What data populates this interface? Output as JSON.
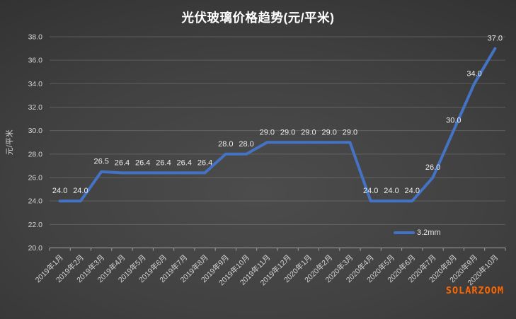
{
  "title": "光伏玻璃价格趋势(元/平米)",
  "watermark": "SOLARZOOM",
  "legend": {
    "label": "3.2mm",
    "color": "#4472C4"
  },
  "colors": {
    "line": "#4472C4",
    "grid": "rgba(255,255,255,0.16)",
    "axis": "#a3a3a3",
    "tick_text": "#d4d4d4",
    "data_label": "#ececec",
    "title_text": "#ffffff",
    "watermark": "#ff6600",
    "background_center": "#4c4c4c",
    "background_edge": "#252525"
  },
  "chart_data": {
    "type": "line",
    "title": "光伏玻璃价格趋势(元/平米)",
    "xlabel": "",
    "ylabel": "元/平米",
    "ylim": [
      20.0,
      38.0
    ],
    "ytick_step": 2.0,
    "grid": true,
    "data_labels": true,
    "legend_position": "inside-bottom-right",
    "categories": [
      "2019年1月",
      "2019年2月",
      "2019年3月",
      "2019年4月",
      "2019年5月",
      "2019年6月",
      "2019年7月",
      "2019年8月",
      "2019年9月",
      "2019年10月",
      "2019年11月",
      "2019年12月",
      "2020年1月",
      "2020年2月",
      "2020年3月",
      "2020年4月",
      "2020年5月",
      "2020年6月",
      "2020年7月",
      "2020年8月",
      "2020年9月",
      "2020年10月"
    ],
    "series": [
      {
        "name": "3.2mm",
        "color": "#4472C4",
        "values": [
          24.0,
          24.0,
          26.5,
          26.4,
          26.4,
          26.4,
          26.4,
          26.4,
          28.0,
          28.0,
          29.0,
          29.0,
          29.0,
          29.0,
          29.0,
          24.0,
          24.0,
          24.0,
          26.0,
          30.0,
          34.0,
          37.0
        ]
      }
    ]
  }
}
